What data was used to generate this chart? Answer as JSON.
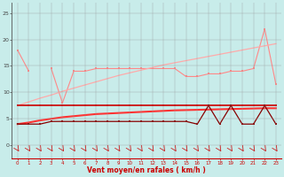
{
  "x": [
    0,
    1,
    2,
    3,
    4,
    5,
    6,
    7,
    8,
    9,
    10,
    11,
    12,
    13,
    14,
    15,
    16,
    17,
    18,
    19,
    20,
    21,
    22,
    23
  ],
  "line_pink_jagged": [
    18,
    14,
    null,
    14.5,
    8,
    14,
    14,
    14.5,
    14.5,
    14.5,
    14.5,
    14.5,
    14.5,
    14.5,
    14.5,
    13,
    13,
    13.5,
    13.5,
    14,
    14,
    14.5,
    22,
    11.5
  ],
  "line_pink_trend": [
    7.5,
    8.2,
    8.9,
    9.5,
    10.2,
    10.8,
    11.4,
    12.0,
    12.6,
    13.2,
    13.7,
    14.2,
    14.7,
    15.2,
    15.6,
    16.0,
    16.4,
    16.8,
    17.2,
    17.6,
    18.0,
    18.4,
    18.8,
    19.2
  ],
  "line_red_flat": [
    7.5,
    7.5,
    7.5,
    7.5,
    7.5,
    7.5,
    7.5,
    7.5,
    7.5,
    7.5,
    7.5,
    7.5,
    7.5,
    7.5,
    7.5,
    7.5,
    7.5,
    7.5,
    7.5,
    7.5,
    7.5,
    7.5,
    7.5,
    7.5
  ],
  "line_red_trend": [
    4.0,
    4.3,
    4.7,
    5.0,
    5.3,
    5.5,
    5.7,
    5.9,
    6.0,
    6.1,
    6.2,
    6.3,
    6.4,
    6.5,
    6.6,
    6.65,
    6.7,
    6.75,
    6.8,
    6.85,
    6.9,
    6.95,
    7.0,
    7.0
  ],
  "line_red_jagged": [
    4.0,
    4.0,
    4.0,
    4.5,
    4.5,
    4.5,
    4.5,
    4.5,
    4.5,
    4.5,
    4.5,
    4.5,
    4.5,
    4.5,
    4.5,
    4.5,
    4.0,
    7.5,
    4.0,
    7.5,
    4.0,
    4.0,
    7.5,
    4.0
  ],
  "background_color": "#c8ecea",
  "grid_color": "#999999",
  "line_pink_jagged_color": "#ff8888",
  "line_pink_trend_color": "#ffaaaa",
  "line_red_flat_color": "#cc0000",
  "line_red_trend_color": "#ff3333",
  "line_red_jagged_color": "#880000",
  "xlabel": "Vent moyen/en rafales ( km/h )",
  "yticks": [
    0,
    5,
    10,
    15,
    20,
    25
  ],
  "xticks": [
    0,
    1,
    2,
    3,
    4,
    5,
    6,
    7,
    8,
    9,
    10,
    11,
    12,
    13,
    14,
    15,
    16,
    17,
    18,
    19,
    20,
    21,
    22,
    23
  ],
  "ylim": [
    -2.5,
    27
  ],
  "xlim": [
    -0.5,
    23.5
  ]
}
